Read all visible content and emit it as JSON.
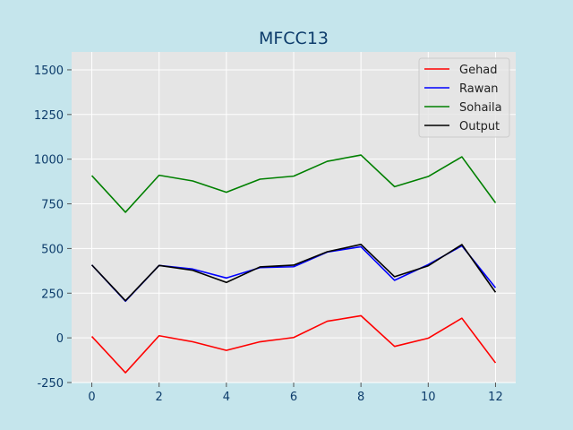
{
  "chart_data": {
    "type": "line",
    "title": "MFCC13",
    "xlabel": "",
    "ylabel": "",
    "x": [
      0,
      1,
      2,
      3,
      4,
      5,
      6,
      7,
      8,
      9,
      10,
      11,
      12
    ],
    "xlim": [
      -0.6,
      12.6
    ],
    "ylim": [
      -250,
      1600
    ],
    "xticks": [
      0,
      2,
      4,
      6,
      8,
      10,
      12
    ],
    "yticks": [
      -250,
      0,
      250,
      500,
      750,
      1000,
      1250,
      1500
    ],
    "grid": true,
    "legend_position": "top-right",
    "series": [
      {
        "name": "Gehad",
        "color": "#ff0000",
        "values": [
          8,
          -195,
          12,
          -22,
          -70,
          -22,
          2,
          93,
          124,
          -48,
          -2,
          110,
          -140
        ]
      },
      {
        "name": "Rawan",
        "color": "#0000ff",
        "values": [
          408,
          205,
          405,
          385,
          335,
          393,
          398,
          480,
          510,
          322,
          410,
          515,
          280
        ]
      },
      {
        "name": "Sohaila",
        "color": "#008000",
        "values": [
          908,
          703,
          910,
          878,
          815,
          888,
          905,
          988,
          1023,
          846,
          903,
          1013,
          756
        ]
      },
      {
        "name": "Output",
        "color": "#000000",
        "values": [
          408,
          208,
          405,
          378,
          310,
          397,
          407,
          482,
          523,
          342,
          403,
          522,
          255
        ]
      }
    ]
  }
}
